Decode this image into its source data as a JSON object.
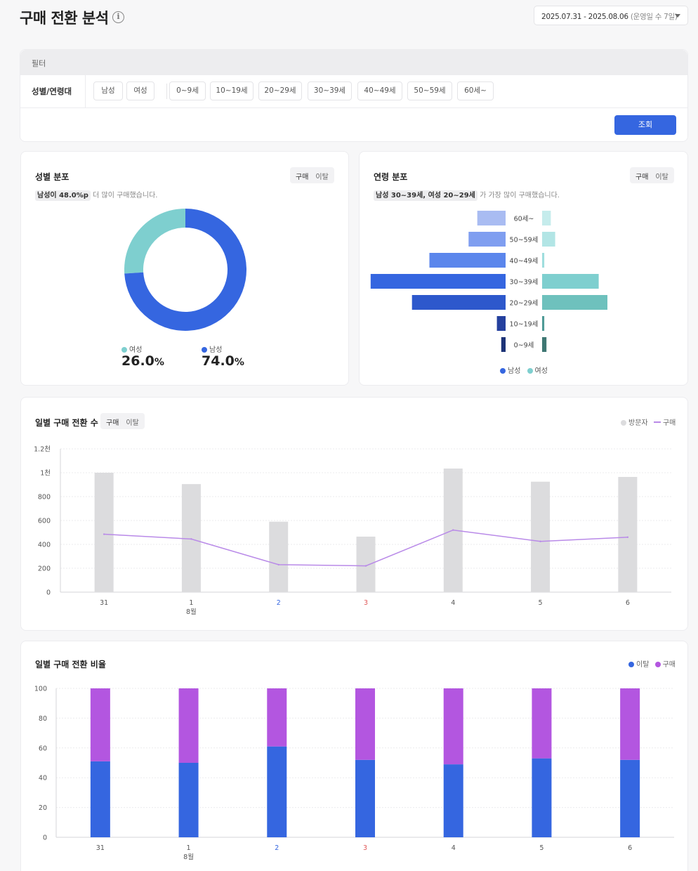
{
  "header": {
    "title": "구매 전환 분석",
    "info_icon": "i",
    "date_range": "2025.07.31 - 2025.08.06",
    "operation_days": "(운영일 수 7일)"
  },
  "filter": {
    "section_label": "필터",
    "row_label": "성별/연령대",
    "gender_chips": [
      "남성",
      "여성"
    ],
    "age_chips": [
      "0~9세",
      "10~19세",
      "20~29세",
      "30~39세",
      "40~49세",
      "50~59세",
      "60세~"
    ],
    "query_button": "조회"
  },
  "gender_card": {
    "title": "성별 분포",
    "toggle": [
      "구매",
      "이탈"
    ],
    "summary_highlight": "남성이 48.0%p",
    "summary_rest": "더 많이 구매했습니다.",
    "female_label": "여성",
    "male_label": "남성",
    "female_value": "26.0",
    "male_value": "74.0",
    "percent_sign": "%",
    "colors": {
      "male": "#3566e0",
      "female": "#7ecfcf"
    }
  },
  "age_card": {
    "title": "연령 분포",
    "toggle": [
      "구매",
      "이탈"
    ],
    "summary_highlight": "남성 30~39세, 여성 20~29세",
    "summary_rest": "가 가장 많이 구매했습니다.",
    "legend_male": "남성",
    "legend_female": "여성"
  },
  "chart_data": [
    {
      "type": "pie",
      "title": "성별 분포",
      "categories": [
        "여성",
        "남성"
      ],
      "values": [
        26.0,
        74.0
      ]
    },
    {
      "type": "bar",
      "title": "연령 분포",
      "categories": [
        "60세~",
        "50~59세",
        "40~49세",
        "30~39세",
        "20~29세",
        "10~19세",
        "0~9세"
      ],
      "series": [
        {
          "name": "남성",
          "values": [
            13,
            17,
            35,
            62,
            43,
            4,
            2
          ]
        },
        {
          "name": "여성",
          "values": [
            4,
            6,
            1,
            26,
            30,
            1,
            2
          ]
        }
      ]
    },
    {
      "type": "bar",
      "title": "일별 구매 전환 수",
      "toggle": [
        "구매",
        "이탈"
      ],
      "categories": [
        "31",
        "1",
        "2",
        "3",
        "4",
        "5",
        "6"
      ],
      "x_sub_label": "8월",
      "series": [
        {
          "name": "방문자",
          "type": "bar",
          "values": [
            1000,
            905,
            590,
            465,
            1035,
            925,
            965
          ],
          "color": "#dcdcde"
        },
        {
          "name": "구매",
          "type": "line",
          "values": [
            485,
            445,
            230,
            220,
            520,
            425,
            460
          ],
          "color": "#b98ae8"
        }
      ],
      "ylim": [
        0,
        1200
      ],
      "ytick_labels": [
        "0",
        "200",
        "400",
        "600",
        "800",
        "1천",
        "1.2천"
      ],
      "tick_colors": [
        "#555",
        "#555",
        "#3566e0",
        "#e05a5a",
        "#555",
        "#555",
        "#555"
      ],
      "grid": true,
      "legend": "top-right"
    },
    {
      "type": "bar",
      "stacked": true,
      "title": "일별 구매 전환 비율",
      "categories": [
        "31",
        "1",
        "2",
        "3",
        "4",
        "5",
        "6"
      ],
      "x_sub_label": "8월",
      "series": [
        {
          "name": "이탈",
          "values": [
            51,
            50,
            61,
            52,
            49,
            53,
            52
          ],
          "color": "#3566e0"
        },
        {
          "name": "구매",
          "values": [
            49,
            50,
            39,
            48,
            51,
            47,
            48
          ],
          "color": "#b356e0"
        }
      ],
      "ylim": [
        0,
        100
      ],
      "ytick_labels": [
        "0",
        "20",
        "40",
        "60",
        "80",
        "100"
      ],
      "tick_colors": [
        "#555",
        "#555",
        "#3566e0",
        "#e05a5a",
        "#555",
        "#555",
        "#555"
      ],
      "grid": true,
      "legend": "top-right"
    }
  ]
}
